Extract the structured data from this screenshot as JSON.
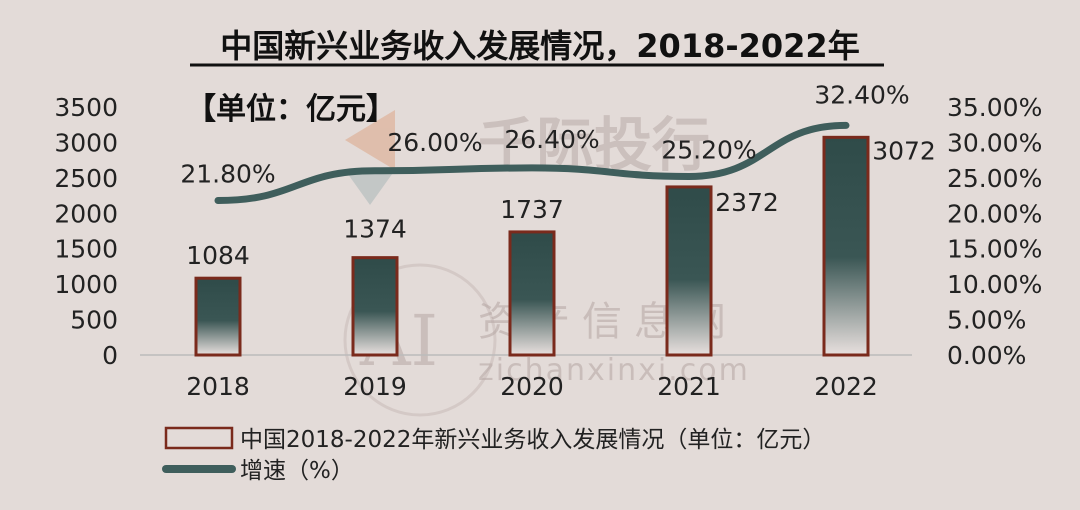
{
  "chart_data": {
    "type": "bar",
    "title": "中国新兴业务收入发展情况，2018-2022年",
    "unit_note": "【单位：亿元】",
    "categories": [
      "2018",
      "2019",
      "2020",
      "2021",
      "2022"
    ],
    "series": [
      {
        "name": "中国2018-2022年新兴业务收入发展情况（单位：亿元）",
        "kind": "bar",
        "axis": "left",
        "values": [
          1084,
          1374,
          1737,
          2372,
          3072
        ],
        "labels": [
          "1084",
          "1374",
          "1737",
          "2372",
          "3072"
        ]
      },
      {
        "name": "增速（%）",
        "kind": "line",
        "axis": "right",
        "values": [
          21.8,
          26.0,
          26.4,
          25.2,
          32.4
        ],
        "labels": [
          "21.80%",
          "26.00%",
          "26.40%",
          "25.20%",
          "32.40%"
        ]
      }
    ],
    "y_left": {
      "ylim": [
        0,
        3500
      ],
      "ticks": [
        "0",
        "500",
        "1000",
        "1500",
        "2000",
        "2500",
        "3000",
        "3500"
      ]
    },
    "y_right": {
      "ylim": [
        0,
        35
      ],
      "ticks": [
        "0.00%",
        "5.00%",
        "10.00%",
        "15.00%",
        "20.00%",
        "25.00%",
        "30.00%",
        "35.00%"
      ]
    },
    "grid": false,
    "legend_position": "bottom-center",
    "colors": {
      "bar_fill": "#2f4b49",
      "bar_border": "#7a2a1c",
      "line": "#3f5e5c",
      "background": "#e3dbd8",
      "text": "#222222"
    }
  },
  "watermarks": [
    "千际投行",
    "资产信息网",
    "zichanxinxi.com"
  ]
}
